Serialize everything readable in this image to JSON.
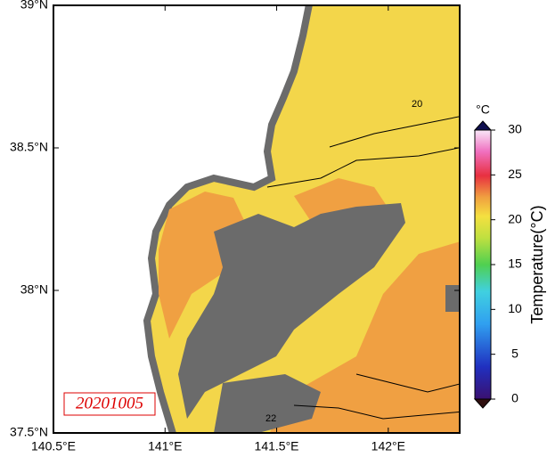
{
  "chart_data": {
    "type": "map",
    "xlim": [
      140.5,
      142.32
    ],
    "ylim": [
      37.5,
      39
    ],
    "xticks": [
      {
        "value": 140.5,
        "label": "140.5°E"
      },
      {
        "value": 141,
        "label": "141°E"
      },
      {
        "value": 141.5,
        "label": "141.5°E"
      },
      {
        "value": 142,
        "label": "142°E"
      }
    ],
    "yticks": [
      {
        "value": 37.5,
        "label": "37.5°N"
      },
      {
        "value": 38,
        "label": "38°N"
      },
      {
        "value": 38.5,
        "label": "38.5°N"
      },
      {
        "value": 39,
        "label": "39°N"
      }
    ],
    "date_label": "20201005",
    "contour_labels": [
      "20",
      "22"
    ],
    "colorbar": {
      "label": "Temperature(°C)",
      "unit": "°C",
      "lim": [
        0,
        30
      ],
      "ticks": [
        0,
        5,
        10,
        15,
        20,
        25,
        30
      ]
    }
  }
}
